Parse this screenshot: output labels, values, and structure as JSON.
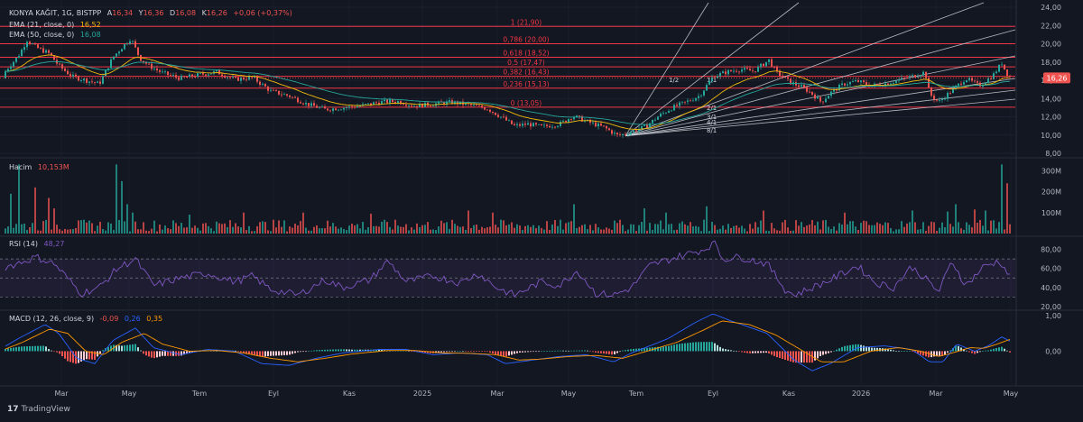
{
  "header": {
    "symbol": "KONYA KAĞIT, 1G, BISTPP",
    "ohlc": [
      {
        "k": "A",
        "v": "16,34"
      },
      {
        "k": "Y",
        "v": "16,36"
      },
      {
        "k": "D",
        "v": "16,08"
      },
      {
        "k": "K",
        "v": "16,26"
      }
    ],
    "change": "+0,06 (+0,37%)"
  },
  "ema21": {
    "label": "EMA (21, close, 0)",
    "value": "16,52"
  },
  "ema50": {
    "label": "EMA (50, close, 0)",
    "value": "16,08"
  },
  "volume": {
    "label": "Hacim",
    "value": "10,153M"
  },
  "rsi": {
    "label": "RSI (14)",
    "value": "48,27"
  },
  "macd": {
    "label": "MACD (12, 26, close, 9)",
    "v1": "-0,09",
    "v2": "0,26",
    "v3": "0,35"
  },
  "watermark": "TradingView",
  "colors": {
    "background": "#131722",
    "up": "#26a69a",
    "down": "#ef5350",
    "fib_line": "#f23645",
    "ema21": "#f0b90b",
    "ema50": "#26a69a",
    "rsi": "#7e57c2",
    "macd": "#2962ff",
    "signal": "#ff9800"
  },
  "chart_data": [
    {
      "type": "candlestick",
      "ylim": [
        8,
        24
      ],
      "price_ticks": [
        "8,00",
        "10,00",
        "12,00",
        "14,00",
        "16,00",
        "18,00",
        "20,00",
        "22,00",
        "24,00"
      ],
      "x_ticks": [
        "Mar",
        "May",
        "Tem",
        "Eyl",
        "Kas",
        "2025",
        "Mar",
        "May",
        "Tem",
        "Eyl",
        "Kas",
        "2026",
        "Mar",
        "May"
      ],
      "last_price": "16,26",
      "fib_levels": [
        {
          "label": "1 (21,90)",
          "price": 21.9
        },
        {
          "label": "0,786 (20,00)",
          "price": 20.0
        },
        {
          "label": "0,618 (18,52)",
          "price": 18.52
        },
        {
          "label": "0,5 (17,47)",
          "price": 17.47
        },
        {
          "label": "0,382 (16,43)",
          "price": 16.43
        },
        {
          "label": "0,236 (15,13)",
          "price": 15.13
        },
        {
          "label": "0 (13,05)",
          "price": 13.05
        }
      ],
      "gann_fan_labels": [
        "1/2",
        "1/1",
        "2/1",
        "3/1",
        "4/1",
        "8/1"
      ],
      "price_path": [
        [
          0,
          16.2
        ],
        [
          10,
          17.5
        ],
        [
          20,
          18.6
        ],
        [
          30,
          20.4
        ],
        [
          40,
          19.6
        ],
        [
          55,
          18.9
        ],
        [
          65,
          17.6
        ],
        [
          80,
          16.4
        ],
        [
          95,
          16.0
        ],
        [
          110,
          15.6
        ],
        [
          125,
          18.5
        ],
        [
          135,
          19.6
        ],
        [
          145,
          20.6
        ],
        [
          155,
          18.4
        ],
        [
          165,
          17.6
        ],
        [
          180,
          16.8
        ],
        [
          200,
          16.2
        ],
        [
          220,
          16.6
        ],
        [
          240,
          16.9
        ],
        [
          260,
          16.1
        ],
        [
          280,
          16.3
        ],
        [
          300,
          14.8
        ],
        [
          320,
          14.3
        ],
        [
          340,
          13.4
        ],
        [
          360,
          12.8
        ],
        [
          380,
          13.0
        ],
        [
          400,
          13.2
        ],
        [
          420,
          13.6
        ],
        [
          440,
          13.7
        ],
        [
          460,
          13.2
        ],
        [
          480,
          13.4
        ],
        [
          500,
          13.6
        ],
        [
          520,
          13.3
        ],
        [
          540,
          12.9
        ],
        [
          555,
          12.0
        ],
        [
          570,
          11.0
        ],
        [
          585,
          11.2
        ],
        [
          600,
          10.9
        ],
        [
          620,
          11.2
        ],
        [
          635,
          12.1
        ],
        [
          650,
          11.5
        ],
        [
          670,
          10.8
        ],
        [
          685,
          9.9
        ],
        [
          700,
          10.4
        ],
        [
          715,
          10.9
        ],
        [
          730,
          12.1
        ],
        [
          745,
          13.0
        ],
        [
          760,
          13.6
        ],
        [
          775,
          14.3
        ],
        [
          790,
          16.4
        ],
        [
          805,
          16.9
        ],
        [
          820,
          17.2
        ],
        [
          835,
          17.0
        ],
        [
          852,
          18.2
        ],
        [
          860,
          16.9
        ],
        [
          875,
          15.8
        ],
        [
          890,
          15.2
        ],
        [
          900,
          14.5
        ],
        [
          910,
          13.6
        ],
        [
          920,
          14.6
        ],
        [
          935,
          15.6
        ],
        [
          950,
          15.9
        ],
        [
          965,
          15.4
        ],
        [
          980,
          15.6
        ],
        [
          995,
          16.0
        ],
        [
          1010,
          16.4
        ],
        [
          1025,
          16.9
        ],
        [
          1030,
          14.5
        ],
        [
          1040,
          13.6
        ],
        [
          1055,
          14.9
        ],
        [
          1070,
          16.2
        ],
        [
          1085,
          15.4
        ],
        [
          1100,
          16.5
        ],
        [
          1110,
          17.9
        ],
        [
          1115,
          16.8
        ],
        [
          1121,
          16.26
        ]
      ]
    },
    {
      "type": "bar",
      "name": "Hacim",
      "ylim": [
        0,
        340
      ],
      "tick_labels": [
        "100M",
        "200M",
        "300M"
      ],
      "tick_values": [
        100,
        200,
        300
      ],
      "spikes": [
        [
          12,
          190
        ],
        [
          22,
          330
        ],
        [
          40,
          220
        ],
        [
          55,
          170
        ],
        [
          60,
          120
        ],
        [
          130,
          330
        ],
        [
          135,
          250
        ],
        [
          140,
          140
        ],
        [
          148,
          100
        ],
        [
          210,
          90
        ],
        [
          270,
          100
        ],
        [
          335,
          100
        ],
        [
          410,
          95
        ],
        [
          520,
          110
        ],
        [
          545,
          100
        ],
        [
          637,
          140
        ],
        [
          715,
          120
        ],
        [
          738,
          100
        ],
        [
          782,
          130
        ],
        [
          845,
          110
        ],
        [
          935,
          100
        ],
        [
          1010,
          110
        ],
        [
          1050,
          105
        ],
        [
          1060,
          140
        ],
        [
          1080,
          115
        ],
        [
          1093,
          110
        ],
        [
          1110,
          330
        ],
        [
          1115,
          240
        ],
        [
          1121,
          100
        ]
      ],
      "base": 35
    },
    {
      "type": "line",
      "name": "RSI",
      "ylim": [
        20,
        90
      ],
      "ticks": [
        "20,00",
        "40,00",
        "60,00",
        "80,00"
      ],
      "tick_values": [
        20,
        40,
        60,
        80
      ],
      "bands": [
        30,
        50,
        70
      ],
      "values": [
        [
          0,
          60
        ],
        [
          15,
          64
        ],
        [
          40,
          72
        ],
        [
          60,
          65
        ],
        [
          90,
          34
        ],
        [
          110,
          40
        ],
        [
          130,
          60
        ],
        [
          150,
          70
        ],
        [
          170,
          42
        ],
        [
          200,
          50
        ],
        [
          230,
          55
        ],
        [
          260,
          46
        ],
        [
          280,
          52
        ],
        [
          300,
          38
        ],
        [
          330,
          32
        ],
        [
          360,
          48
        ],
        [
          380,
          40
        ],
        [
          410,
          48
        ],
        [
          430,
          68
        ],
        [
          450,
          46
        ],
        [
          480,
          52
        ],
        [
          510,
          45
        ],
        [
          530,
          55
        ],
        [
          550,
          40
        ],
        [
          570,
          32
        ],
        [
          600,
          46
        ],
        [
          620,
          42
        ],
        [
          640,
          58
        ],
        [
          660,
          34
        ],
        [
          680,
          32
        ],
        [
          700,
          40
        ],
        [
          720,
          63
        ],
        [
          750,
          72
        ],
        [
          780,
          80
        ],
        [
          793,
          88
        ],
        [
          800,
          70
        ],
        [
          820,
          72
        ],
        [
          850,
          65
        ],
        [
          870,
          38
        ],
        [
          880,
          32
        ],
        [
          900,
          40
        ],
        [
          920,
          48
        ],
        [
          950,
          63
        ],
        [
          970,
          45
        ],
        [
          990,
          40
        ],
        [
          1010,
          62
        ],
        [
          1030,
          45
        ],
        [
          1040,
          35
        ],
        [
          1055,
          68
        ],
        [
          1070,
          42
        ],
        [
          1090,
          62
        ],
        [
          1108,
          68
        ],
        [
          1121,
          48
        ]
      ]
    },
    {
      "type": "line",
      "name": "MACD",
      "ylim": [
        -0.9,
        1.05
      ],
      "ticks": [
        "0,00",
        "1,00"
      ],
      "tick_values": [
        0,
        1
      ],
      "macd": [
        [
          0,
          0.05
        ],
        [
          20,
          0.35
        ],
        [
          50,
          0.75
        ],
        [
          65,
          0.5
        ],
        [
          85,
          -0.2
        ],
        [
          105,
          -0.35
        ],
        [
          125,
          0.3
        ],
        [
          150,
          0.65
        ],
        [
          170,
          0.1
        ],
        [
          200,
          -0.1
        ],
        [
          230,
          0.05
        ],
        [
          260,
          0.0
        ],
        [
          290,
          -0.35
        ],
        [
          320,
          -0.4
        ],
        [
          350,
          -0.2
        ],
        [
          380,
          -0.05
        ],
        [
          420,
          0.05
        ],
        [
          450,
          0.05
        ],
        [
          480,
          -0.1
        ],
        [
          510,
          -0.05
        ],
        [
          540,
          -0.1
        ],
        [
          560,
          -0.35
        ],
        [
          590,
          -0.25
        ],
        [
          620,
          -0.15
        ],
        [
          650,
          -0.1
        ],
        [
          680,
          -0.3
        ],
        [
          700,
          -0.05
        ],
        [
          740,
          0.35
        ],
        [
          770,
          0.8
        ],
        [
          790,
          1.05
        ],
        [
          810,
          0.85
        ],
        [
          850,
          0.5
        ],
        [
          880,
          -0.25
        ],
        [
          900,
          -0.55
        ],
        [
          920,
          -0.35
        ],
        [
          950,
          0.1
        ],
        [
          980,
          0.15
        ],
        [
          1010,
          0.05
        ],
        [
          1030,
          -0.3
        ],
        [
          1045,
          -0.3
        ],
        [
          1060,
          0.2
        ],
        [
          1080,
          0.0
        ],
        [
          1095,
          0.15
        ],
        [
          1110,
          0.4
        ],
        [
          1121,
          0.26
        ]
      ],
      "signal": [
        [
          0,
          0.0
        ],
        [
          25,
          0.25
        ],
        [
          55,
          0.62
        ],
        [
          75,
          0.5
        ],
        [
          95,
          0.0
        ],
        [
          115,
          -0.1
        ],
        [
          135,
          0.25
        ],
        [
          160,
          0.5
        ],
        [
          180,
          0.2
        ],
        [
          210,
          0.0
        ],
        [
          240,
          0.02
        ],
        [
          270,
          -0.05
        ],
        [
          300,
          -0.2
        ],
        [
          330,
          -0.3
        ],
        [
          360,
          -0.2
        ],
        [
          390,
          -0.08
        ],
        [
          430,
          0.02
        ],
        [
          460,
          0.02
        ],
        [
          490,
          -0.05
        ],
        [
          520,
          -0.06
        ],
        [
          550,
          -0.1
        ],
        [
          575,
          -0.25
        ],
        [
          600,
          -0.22
        ],
        [
          630,
          -0.15
        ],
        [
          660,
          -0.12
        ],
        [
          690,
          -0.2
        ],
        [
          710,
          -0.05
        ],
        [
          750,
          0.25
        ],
        [
          780,
          0.6
        ],
        [
          800,
          0.85
        ],
        [
          830,
          0.75
        ],
        [
          860,
          0.45
        ],
        [
          890,
          0.0
        ],
        [
          910,
          -0.3
        ],
        [
          935,
          -0.3
        ],
        [
          965,
          0.0
        ],
        [
          995,
          0.1
        ],
        [
          1020,
          0.0
        ],
        [
          1040,
          -0.15
        ],
        [
          1055,
          -0.05
        ],
        [
          1075,
          0.1
        ],
        [
          1090,
          0.08
        ],
        [
          1105,
          0.2
        ],
        [
          1121,
          0.35
        ]
      ]
    }
  ]
}
